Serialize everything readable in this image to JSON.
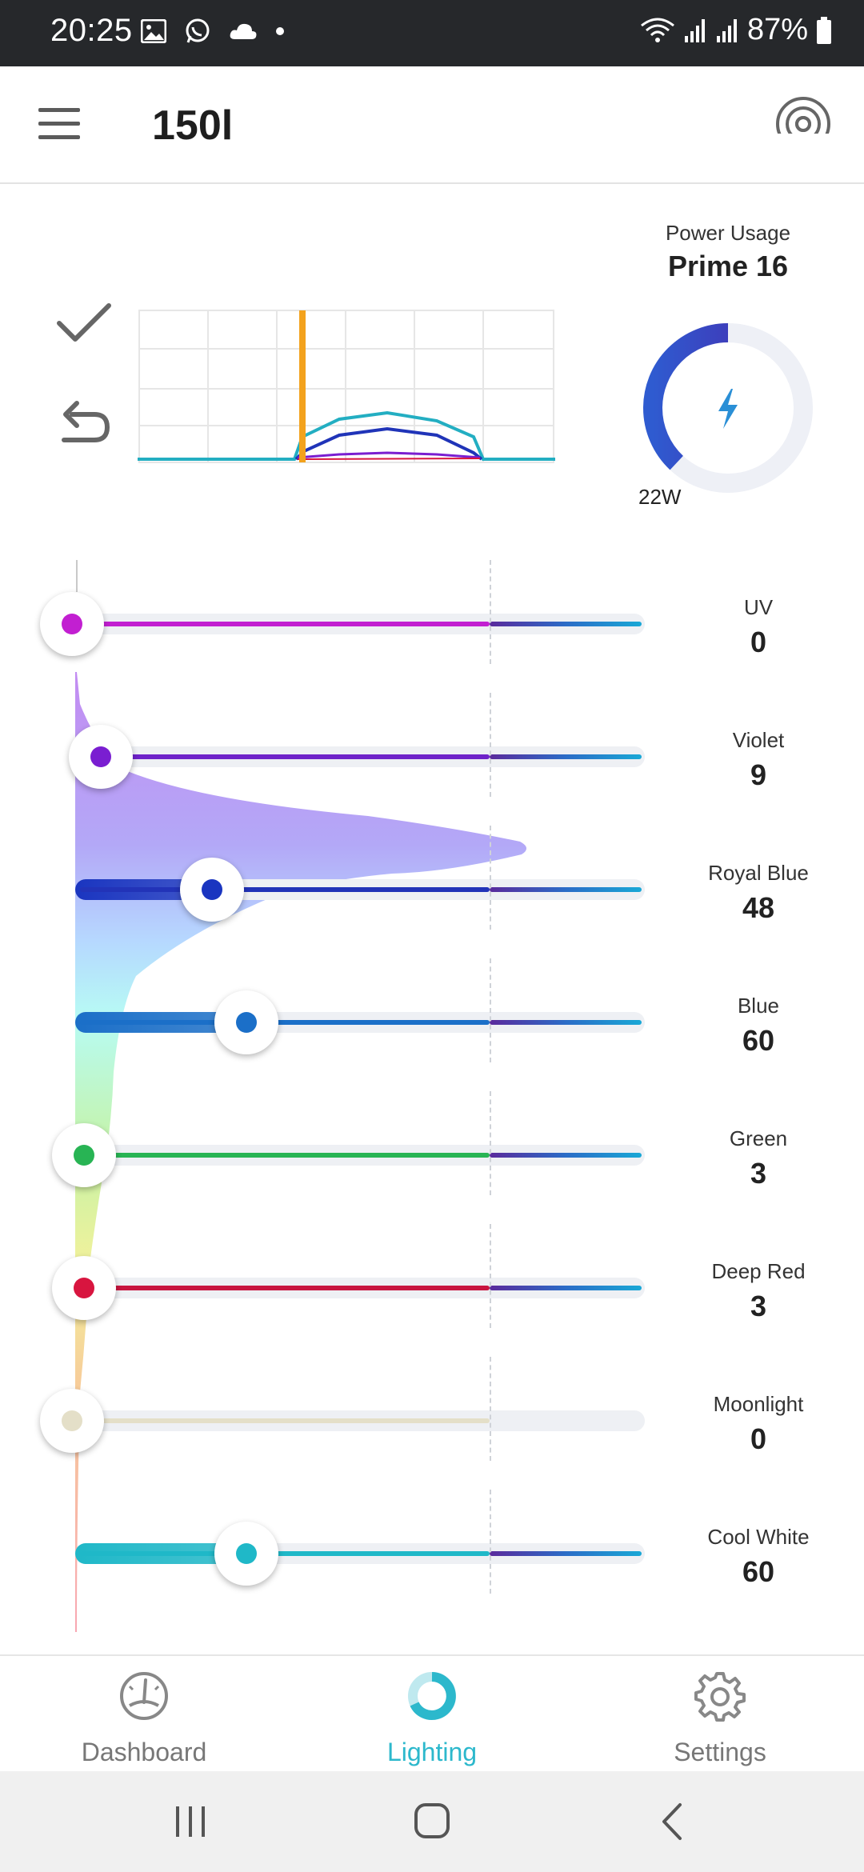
{
  "status_bar": {
    "time": "20:25",
    "battery_text": "87%",
    "icons": [
      "gallery-icon",
      "whatsapp-icon",
      "cloud-icon",
      "dot-icon",
      "wifi-icon",
      "signal-icon",
      "signal-icon",
      "battery-icon"
    ]
  },
  "app_bar": {
    "title": "150l",
    "left_icon": "menu-icon",
    "right_icon": "radio-broadcast-icon"
  },
  "actions": {
    "apply_icon": "check-icon",
    "undo_icon": "undo-icon"
  },
  "power": {
    "label": "Power Usage",
    "device": "Prime 16",
    "watts": "22W",
    "fraction": 0.38,
    "icon": "bolt-icon",
    "colors": {
      "arc_start": "#4a22a8",
      "arc_end": "#2f5bd0",
      "track": "#eef0f6",
      "bolt": "#2a8fd6"
    }
  },
  "channels": [
    {
      "name": "UV",
      "value": "0",
      "level": 0,
      "color": "#c21fd1",
      "line_color": "#c21fd1"
    },
    {
      "name": "Violet",
      "value": "9",
      "level": 0.09,
      "color": "#7a1ed1",
      "line_color": "#6e22c9"
    },
    {
      "name": "Royal Blue",
      "value": "48",
      "level": 0.48,
      "color": "#1a35c0",
      "line_color": "#2233b8"
    },
    {
      "name": "Blue",
      "value": "60",
      "level": 0.6,
      "color": "#1b6fc8",
      "line_color": "#1b6fc8"
    },
    {
      "name": "Green",
      "value": "3",
      "level": 0.03,
      "color": "#28b454",
      "line_color": "#28b454"
    },
    {
      "name": "Deep Red",
      "value": "3",
      "level": 0.03,
      "color": "#d8153f",
      "line_color": "#c8153f"
    },
    {
      "name": "Moonlight",
      "value": "0",
      "level": 0,
      "color": "#e4dfc8",
      "line_color": "#e4dfc8"
    },
    {
      "name": "Cool White",
      "value": "60",
      "level": 0.6,
      "color": "#1fb8c8",
      "line_color": "#1fb8c8"
    }
  ],
  "bottom_nav": {
    "items": [
      {
        "label": "Dashboard",
        "icon": "gauge-icon",
        "active": false
      },
      {
        "label": "Lighting",
        "icon": "ring-icon",
        "active": true
      },
      {
        "label": "Settings",
        "icon": "gear-icon",
        "active": false
      }
    ]
  },
  "system_nav": {
    "icons": [
      "recents-icon",
      "home-icon",
      "back-icon"
    ]
  }
}
